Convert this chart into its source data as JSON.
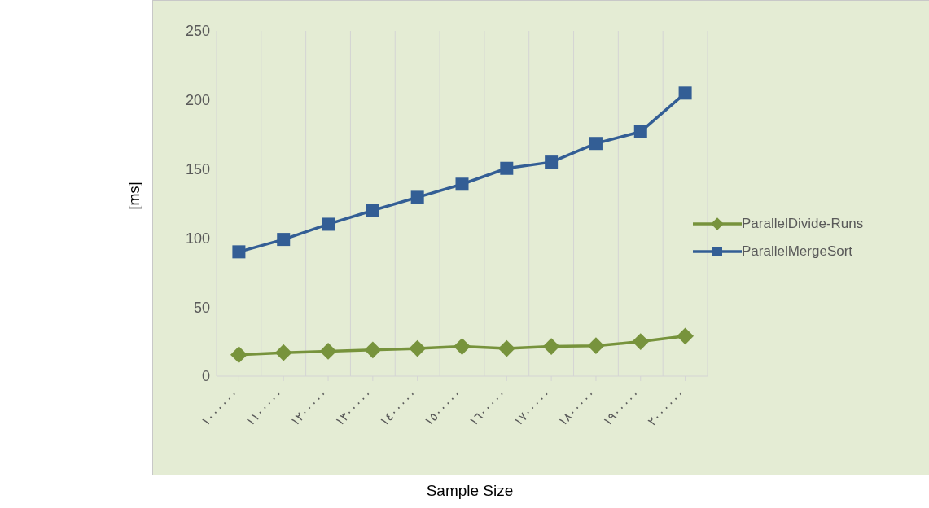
{
  "chart_data": {
    "type": "line",
    "xlabel": "Sample Size",
    "ylabel": "[ms]",
    "categories": [
      "١٠٠٠٠٠٠",
      "١١٠٠٠٠٠",
      "١٢٠٠٠٠٠",
      "١٣٠٠٠٠٠",
      "١٤٠٠٠٠٠",
      "١٥٠٠٠٠٠",
      "١٦٠٠٠٠٠",
      "١٧٠٠٠٠٠",
      "١٨٠٠٠٠٠",
      "١٩٠٠٠٠٠",
      "٢٠٠٠٠٠٠"
    ],
    "series": [
      {
        "name": "ParallelDivide-Runs",
        "color": "#77933c",
        "marker": "diamond",
        "values": [
          15.5,
          17,
          18,
          19,
          20,
          21.5,
          20,
          21.5,
          22,
          25,
          29
        ]
      },
      {
        "name": "ParallelMergeSort",
        "color": "#335e95",
        "marker": "square",
        "values": [
          90,
          99,
          110,
          120,
          129.5,
          139,
          150.5,
          155,
          168.5,
          177,
          205
        ]
      }
    ],
    "ylim": [
      0,
      250
    ],
    "yticks": [
      0,
      50,
      100,
      150,
      200,
      250
    ],
    "grid": "x",
    "legend": "right"
  }
}
